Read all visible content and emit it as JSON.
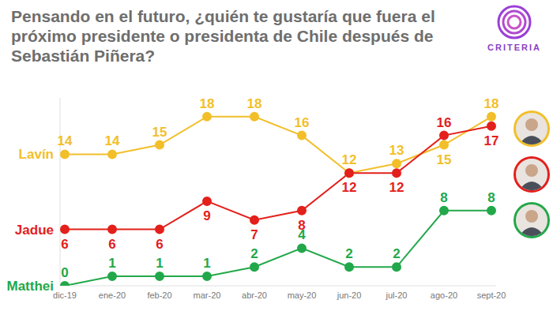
{
  "chart_data": {
    "type": "line",
    "title": "Pensando en el futuro, ¿quién te gustaría que fuera el próximo presidente o presidenta de Chile después de Sebastián Piñera?",
    "annotations": [
      "CRITERIA"
    ],
    "categories": [
      "dic-19",
      "ene-20",
      "feb-20",
      "mar-20",
      "abr-20",
      "may-20",
      "jun-20",
      "jul-20",
      "ago-20",
      "sept-20"
    ],
    "series": [
      {
        "name": "Lavín",
        "color": "#f2bf2a",
        "values": [
          14,
          14,
          15,
          18,
          18,
          16,
          12,
          13,
          15,
          18
        ]
      },
      {
        "name": "Jadue",
        "color": "#e3201b",
        "values": [
          6,
          6,
          6,
          9,
          7,
          8,
          12,
          12,
          16,
          17
        ]
      },
      {
        "name": "Matthei",
        "color": "#22a84a",
        "values": [
          0,
          1,
          1,
          1,
          2,
          4,
          2,
          2,
          8,
          8
        ]
      }
    ],
    "ylim": [
      0,
      20
    ],
    "grid": false,
    "data_labels": true,
    "tick_labels": "x",
    "marker": "circle"
  }
}
